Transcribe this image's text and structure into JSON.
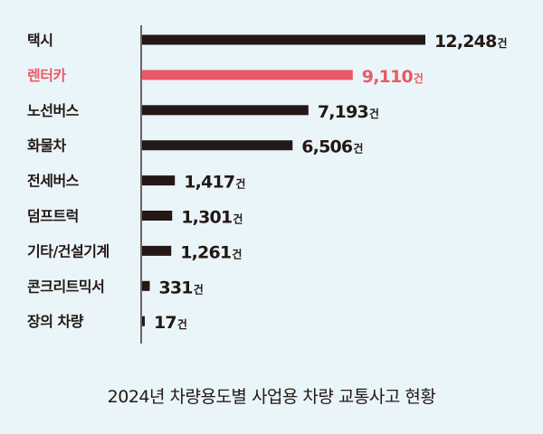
{
  "chart_data": {
    "type": "bar",
    "orientation": "horizontal",
    "title": "2024년 차량용도별 사업용 차량 교통사고 현황",
    "unit": "건",
    "categories": [
      "택시",
      "렌터카",
      "노선버스",
      "화물차",
      "전세버스",
      "덤프트럭",
      "기타/건설기계",
      "콘크리트믹서",
      "장의 차량"
    ],
    "values": [
      12248,
      9110,
      7193,
      6506,
      1417,
      1301,
      1261,
      331,
      17
    ],
    "value_labels": [
      "12,248",
      "9,110",
      "7,193",
      "6,506",
      "1,417",
      "1,301",
      "1,261",
      "331",
      "17"
    ],
    "highlight_index": 1,
    "colors": {
      "bar": "#231815",
      "highlight": "#e95a66",
      "background": "#eaf5f9"
    },
    "xlim": [
      0,
      12248
    ]
  }
}
